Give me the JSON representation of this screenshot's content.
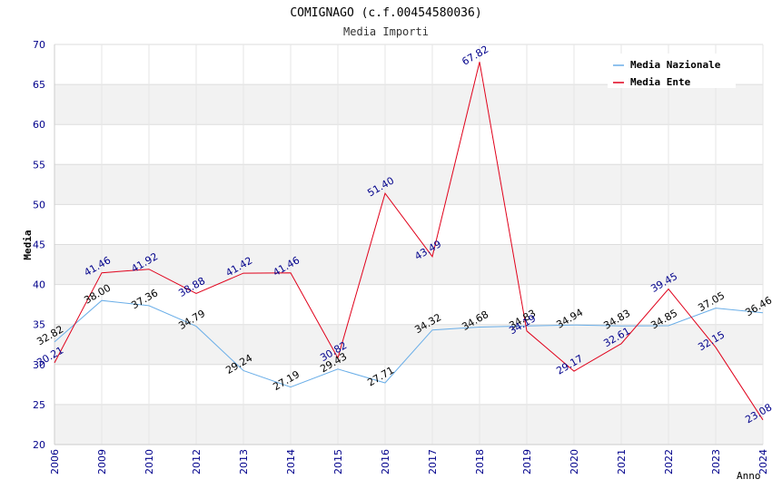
{
  "chart_data": {
    "type": "line",
    "title": "COMIGNAGO (c.f.00454580036)",
    "subtitle": "Media Importi",
    "xlabel": "Anno",
    "ylabel": "Media",
    "ylim": [
      20,
      70
    ],
    "yticks": [
      20,
      25,
      30,
      35,
      40,
      45,
      50,
      55,
      60,
      65,
      70
    ],
    "categories": [
      "2006",
      "2009",
      "2010",
      "2012",
      "2013",
      "2014",
      "2015",
      "2016",
      "2017",
      "2018",
      "2019",
      "2020",
      "2021",
      "2022",
      "2023",
      "2024"
    ],
    "series": [
      {
        "name": "Media Nazionale",
        "color": "#6aaee8",
        "values": [
          32.82,
          38.0,
          37.36,
          34.79,
          29.24,
          27.19,
          29.43,
          27.71,
          34.32,
          34.68,
          34.83,
          34.94,
          34.83,
          34.85,
          37.05,
          36.46
        ],
        "labels": [
          "32.82",
          "38.00",
          "37.36",
          "34.79",
          "29.24",
          "27.19",
          "29.43",
          "27.71",
          "34.32",
          "34.68",
          "34.83",
          "34.94",
          "34.83",
          "34.85",
          "37.05",
          "36.46"
        ]
      },
      {
        "name": "Media Ente",
        "color": "#e0001a",
        "values": [
          30.21,
          41.46,
          41.92,
          38.88,
          41.42,
          41.46,
          30.82,
          51.4,
          43.49,
          67.82,
          34.19,
          29.17,
          32.61,
          39.45,
          32.15,
          23.08
        ],
        "labels": [
          "30.21",
          "41.46",
          "41.92",
          "38.88",
          "41.42",
          "41.46",
          "30.82",
          "51.40",
          "43.49",
          "67.82",
          "34.19",
          "29.17",
          "32.61",
          "39.45",
          "32.15",
          "23.08"
        ]
      }
    ],
    "grid": true,
    "legend": "top-right"
  }
}
